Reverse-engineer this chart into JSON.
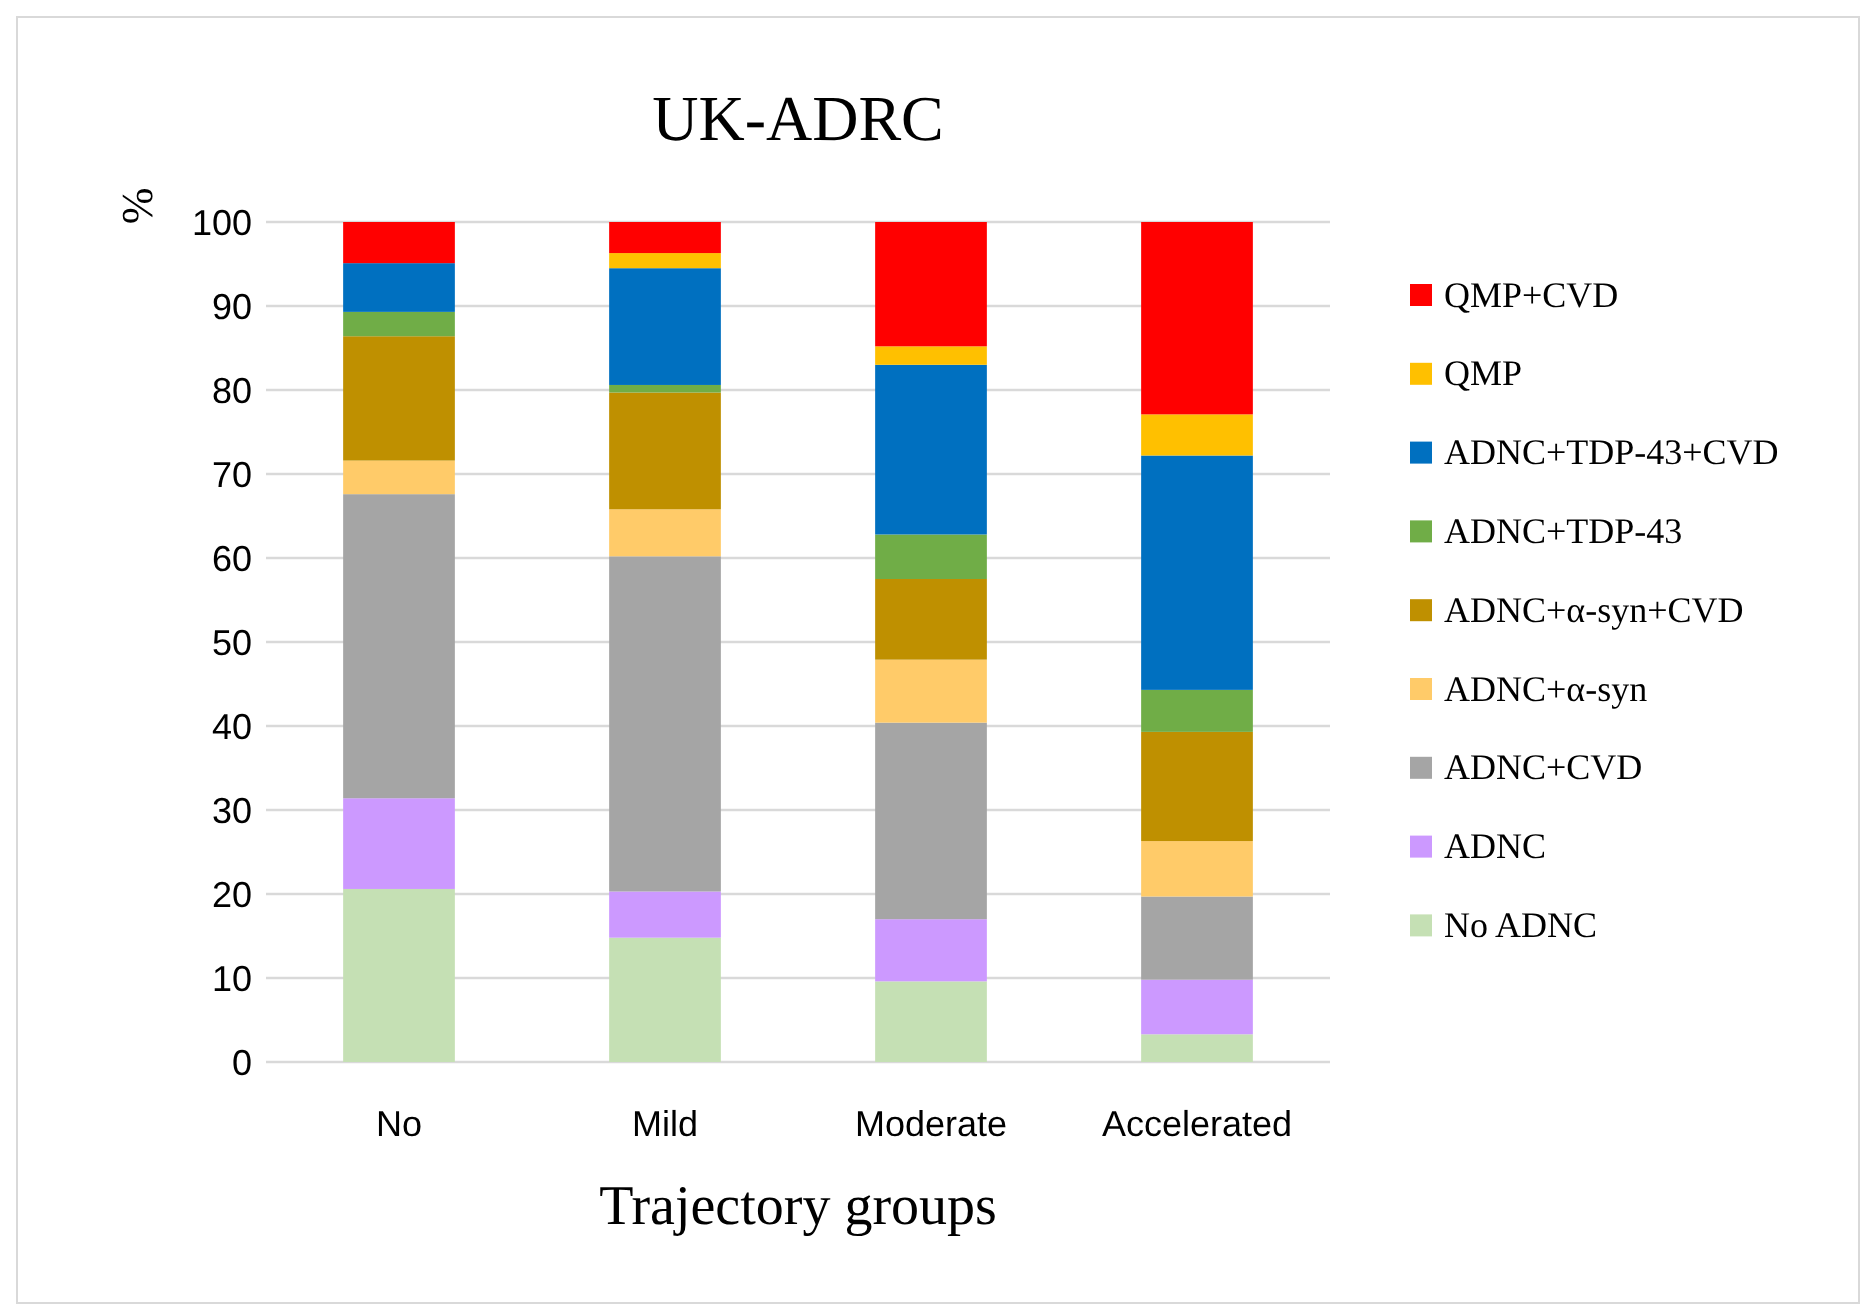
{
  "chart_data": {
    "type": "bar",
    "title": "UK-ADRC",
    "xlabel": "Trajectory groups",
    "ylabel": "%",
    "categories": [
      "No",
      "Mild",
      "Moderate",
      "Accelerated"
    ],
    "stacked": true,
    "ylim": [
      0,
      100
    ],
    "yticks": [
      0,
      10,
      20,
      30,
      40,
      50,
      60,
      70,
      80,
      90,
      100
    ],
    "grid": "y",
    "legend": "right",
    "series": [
      {
        "name": "No ADNC",
        "color": "#c5e0b4",
        "values": [
          20.6,
          14.8,
          9.6,
          3.3
        ]
      },
      {
        "name": "ADNC",
        "color": "#cc99ff",
        "values": [
          10.8,
          5.5,
          7.4,
          6.5
        ]
      },
      {
        "name": "ADNC+CVD",
        "color": "#a5a5a5",
        "values": [
          36.2,
          39.9,
          23.4,
          9.9
        ]
      },
      {
        "name": "ADNC+α-syn",
        "color": "#ffcb69",
        "values": [
          4.0,
          5.6,
          7.5,
          6.6
        ]
      },
      {
        "name": "ADNC+α-syn+CVD",
        "color": "#bf9000",
        "values": [
          14.8,
          13.9,
          9.6,
          13.0
        ]
      },
      {
        "name": "ADNC+TDP-43",
        "color": "#70ad47",
        "values": [
          2.9,
          0.9,
          5.3,
          5.0
        ]
      },
      {
        "name": "ADNC+TDP-43+CVD",
        "color": "#0070c0",
        "values": [
          5.8,
          13.9,
          20.2,
          27.9
        ]
      },
      {
        "name": "QMP",
        "color": "#ffc000",
        "values": [
          0,
          1.8,
          2.2,
          4.9
        ]
      },
      {
        "name": "QMP+CVD",
        "color": "#ff0000",
        "values": [
          4.9,
          3.7,
          14.8,
          22.9
        ]
      }
    ]
  }
}
